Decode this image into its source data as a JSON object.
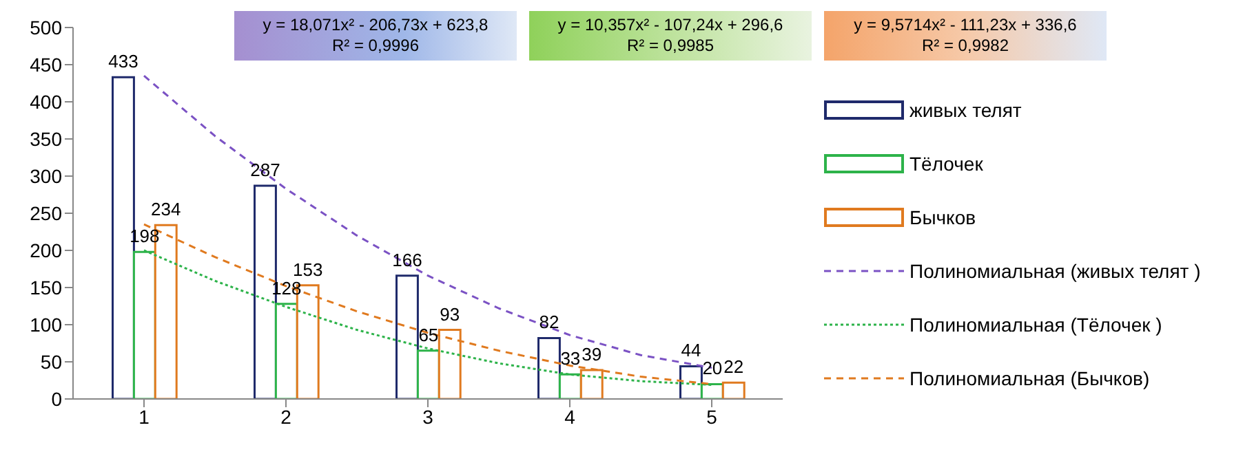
{
  "chart_data": {
    "type": "bar",
    "x": [
      1,
      2,
      3,
      4,
      5
    ],
    "xlim": [
      0.5,
      5.5
    ],
    "xticks": [
      1,
      2,
      3,
      4,
      5
    ],
    "ylim": [
      0,
      500
    ],
    "yticks": [
      0,
      50,
      100,
      150,
      200,
      250,
      300,
      350,
      400,
      450,
      500
    ],
    "grid": false,
    "legend": "right",
    "series": [
      {
        "name": "живых телят",
        "color": "#1f2a6b",
        "values": [
          433,
          287,
          166,
          82,
          44
        ],
        "value_labels": [
          "433",
          "287",
          "166",
          "82",
          "44"
        ]
      },
      {
        "name": "Тёлочек",
        "color": "#2db34a",
        "values": [
          198,
          128,
          65,
          33,
          20
        ],
        "value_labels": [
          "198",
          "128",
          "65",
          "33",
          "20"
        ]
      },
      {
        "name": "Бычков",
        "color": "#e07a1f",
        "values": [
          234,
          153,
          93,
          39,
          22
        ],
        "value_labels": [
          "234",
          "153",
          "93",
          "39",
          "22"
        ]
      },
      {
        "name": "Полиномиальная (живых телят )",
        "type": "line",
        "line_style": "dashed",
        "marker": "none",
        "color": "#7b52c4",
        "x": [
          1,
          1.5,
          2,
          2.5,
          3,
          3.5,
          4,
          4.5,
          5
        ],
        "values": [
          435,
          354,
          283,
          220,
          166,
          122,
          86,
          59,
          42
        ]
      },
      {
        "name": "Полиномиальная (Тёлочек )",
        "type": "line",
        "line_style": "dotted",
        "marker": "none",
        "color": "#2db34a",
        "x": [
          1,
          1.5,
          2,
          2.5,
          3,
          3.5,
          4,
          4.5,
          5
        ],
        "values": [
          200,
          159,
          124,
          93,
          68,
          48,
          33,
          24,
          19
        ]
      },
      {
        "name": "Полиномиальная (Бычков)",
        "type": "line",
        "line_style": "dashed",
        "marker": "none",
        "color": "#e07a1f",
        "x": [
          1,
          1.5,
          2,
          2.5,
          3,
          3.5,
          4,
          4.5,
          5
        ],
        "values": [
          235,
          191,
          152,
          118,
          89,
          65,
          45,
          30,
          20
        ]
      }
    ],
    "annotations": [
      "y = 18,071x² - 206,73x + 623,8\nR² = 0,9996",
      "y = 10,357x² - 107,24x + 296,6\nR² = 0,9985",
      "y = 9,5714x² - 111,23x + 336,6\nR² = 0,9982"
    ]
  }
}
